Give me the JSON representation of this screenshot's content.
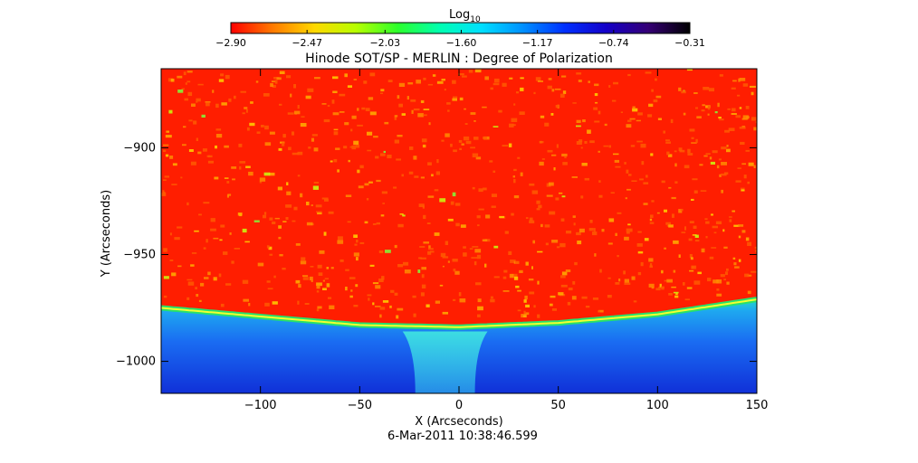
{
  "colorbar": {
    "label_main": "Log",
    "label_sub": "10",
    "ticks": [
      "-2.90",
      "-2.47",
      "-2.03",
      "-1.60",
      "-1.17",
      "-0.74",
      "-0.31"
    ],
    "colors": [
      "#ff0000",
      "#ff7a00",
      "#ffd800",
      "#b7ff00",
      "#2cff2c",
      "#00ffb0",
      "#00e0ff",
      "#0090ff",
      "#0030ff",
      "#1400c8",
      "#350075",
      "#000000"
    ]
  },
  "chart_data": {
    "type": "heatmap",
    "title": "Hinode SOT/SP - MERLIN : Degree of Polarization",
    "xlabel": "X (Arcseconds)",
    "ylabel": "Y (Arcseconds)",
    "xlim": [
      -150,
      150
    ],
    "ylim": [
      -1015,
      -863
    ],
    "x_ticks": [
      -100,
      -50,
      0,
      50,
      100,
      150
    ],
    "y_ticks": [
      -900,
      -950,
      -1000
    ],
    "x_tick_labels": [
      "−100",
      "−50",
      "0",
      "50",
      "100",
      "150"
    ],
    "y_tick_labels": [
      "−900",
      "−950",
      "−1000"
    ],
    "colorbar_range": [
      -2.9,
      -0.31
    ],
    "limb_y_at_x": [
      [
        -150,
        -975
      ],
      [
        -100,
        -979
      ],
      [
        -50,
        -983
      ],
      [
        0,
        -984
      ],
      [
        50,
        -982
      ],
      [
        100,
        -978
      ],
      [
        150,
        -971
      ]
    ],
    "timestamp": "6-Mar-2011 10:38:46.599"
  }
}
